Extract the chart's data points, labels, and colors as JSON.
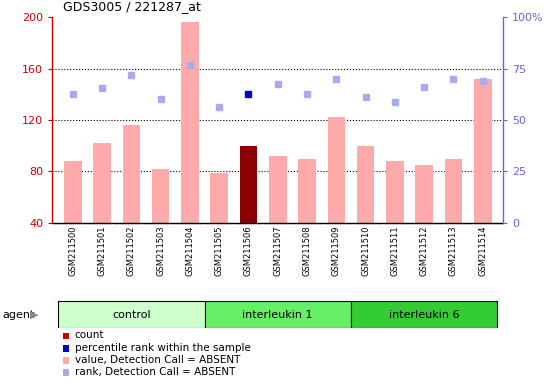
{
  "title": "GDS3005 / 221287_at",
  "samples": [
    "GSM211500",
    "GSM211501",
    "GSM211502",
    "GSM211503",
    "GSM211504",
    "GSM211505",
    "GSM211506",
    "GSM211507",
    "GSM211508",
    "GSM211509",
    "GSM211510",
    "GSM211511",
    "GSM211512",
    "GSM211513",
    "GSM211514"
  ],
  "bar_values": [
    88,
    102,
    116,
    82,
    196,
    79,
    100,
    92,
    90,
    122,
    100,
    88,
    85,
    90,
    152
  ],
  "bar_colors": [
    "#ffaaaa",
    "#ffaaaa",
    "#ffaaaa",
    "#ffaaaa",
    "#ffaaaa",
    "#ffaaaa",
    "#8b0000",
    "#ffaaaa",
    "#ffaaaa",
    "#ffaaaa",
    "#ffaaaa",
    "#ffaaaa",
    "#ffaaaa",
    "#ffaaaa",
    "#ffaaaa"
  ],
  "rank_values": [
    140,
    145,
    155,
    136,
    163,
    130,
    140,
    148,
    140,
    152,
    138,
    134,
    146,
    152,
    150
  ],
  "rank_colors": [
    "#aaaaee",
    "#aaaaee",
    "#aaaaee",
    "#aaaaee",
    "#aaaaee",
    "#aaaaee",
    "#0000cc",
    "#aaaaee",
    "#aaaaee",
    "#aaaaee",
    "#aaaaee",
    "#aaaaee",
    "#aaaaee",
    "#aaaaee",
    "#aaaaee"
  ],
  "ylim_left": [
    40,
    200
  ],
  "ylim_right": [
    0,
    100
  ],
  "yticks_left": [
    40,
    80,
    120,
    160,
    200
  ],
  "yticks_right": [
    0,
    25,
    50,
    75,
    100
  ],
  "ytick_right_labels": [
    "0",
    "25",
    "50",
    "75",
    "100%"
  ],
  "hlines": [
    80,
    120,
    160
  ],
  "groups": [
    {
      "label": "control",
      "start": 0,
      "end": 4,
      "color": "#ccffcc"
    },
    {
      "label": "interleukin 1",
      "start": 5,
      "end": 9,
      "color": "#66ee66"
    },
    {
      "label": "interleukin 6",
      "start": 10,
      "end": 14,
      "color": "#33cc33"
    }
  ],
  "agent_label": "agent",
  "bg_plot": "#ffffff",
  "bg_xaxis": "#cccccc",
  "left_tick_color": "#cc0000",
  "right_tick_color": "#6666cc",
  "legend_items": [
    {
      "color": "#cc0000",
      "label": "count"
    },
    {
      "color": "#0000cc",
      "label": "percentile rank within the sample"
    },
    {
      "color": "#ffaaaa",
      "label": "value, Detection Call = ABSENT"
    },
    {
      "color": "#aaaaee",
      "label": "rank, Detection Call = ABSENT"
    }
  ]
}
